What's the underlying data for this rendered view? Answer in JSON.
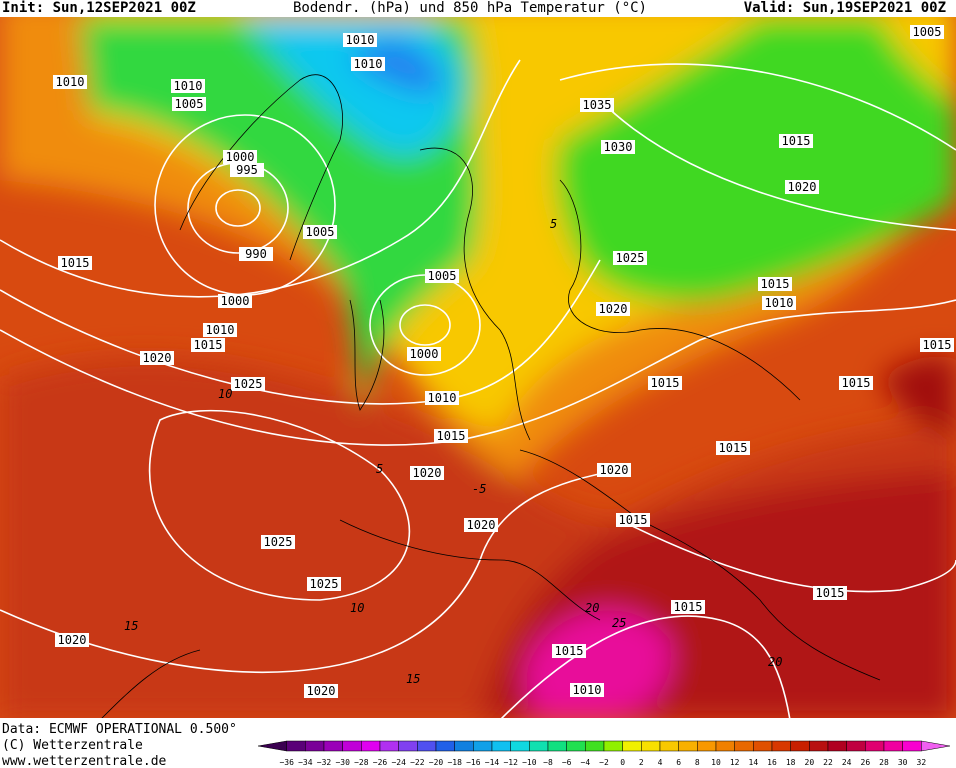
{
  "header": {
    "init": "Init: Sun,12SEP2021 00Z",
    "title": "Bodendr. (hPa) und 850 hPa Temperatur (°C)",
    "valid": "Valid: Sun,19SEP2021 00Z"
  },
  "isobar_labels": [
    "1010",
    "1010",
    "1010",
    "1010",
    "1005",
    "1035",
    "1030",
    "1015",
    "1020",
    "1000",
    "995",
    "1005",
    "990",
    "1015",
    "1025",
    "1005",
    "1015",
    "1010",
    "1020",
    "1000",
    "1010",
    "1015",
    "1020",
    "1000",
    "1015",
    "1025",
    "1015",
    "1015",
    "1010",
    "1015",
    "1015",
    "1020",
    "1020",
    "1015",
    "1020",
    "1025",
    "1025",
    "1015",
    "1015",
    "1020",
    "1015",
    "1010",
    "1020",
    "1005"
  ],
  "temperature_labels": [
    "5",
    "10",
    "15",
    "20",
    "25",
    "-5",
    "5",
    "10",
    "15",
    "20"
  ],
  "footer": {
    "data": "Data: ECMWF OPERATIONAL 0.500°",
    "copyright": "(C) Wetterzentrale",
    "url": "www.wetterzentrale.de"
  },
  "legend": {
    "labels": [
      "−36",
      "−34",
      "−32",
      "−30",
      "−28",
      "−26",
      "−24",
      "−22",
      "−20",
      "−18",
      "−16",
      "−14",
      "−12",
      "−10",
      "−8",
      "−6",
      "−4",
      "−2",
      "0",
      "2",
      "4",
      "6",
      "8",
      "10",
      "12",
      "14",
      "16",
      "18",
      "20",
      "22",
      "24",
      "26",
      "28",
      "30",
      "32"
    ],
    "colors": [
      "#3a0050",
      "#5a0078",
      "#7a0098",
      "#9a00b8",
      "#c000d8",
      "#e000f0",
      "#b030f0",
      "#8040f0",
      "#5050f0",
      "#2060e8",
      "#1080e0",
      "#10a0e8",
      "#10c0f0",
      "#10d8e0",
      "#10e0b0",
      "#10e080",
      "#20e050",
      "#40e020",
      "#90f000",
      "#f0f000",
      "#f8e000",
      "#f8c800",
      "#f8b000",
      "#f89800",
      "#f08000",
      "#e86800",
      "#e05000",
      "#d83800",
      "#c82000",
      "#b81010",
      "#b00020",
      "#c00040",
      "#e00070",
      "#f000a0",
      "#f800d0",
      "#f060f0"
    ]
  }
}
